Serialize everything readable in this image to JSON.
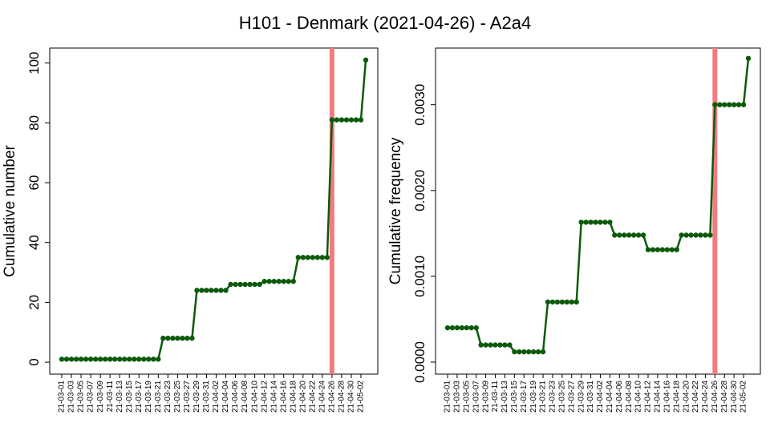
{
  "title": "H101 - Denmark (2021-04-26) - A2a4",
  "chart_data": [
    {
      "type": "line",
      "ylabel": "Cumulative number",
      "categories": [
        "21-03-01",
        null,
        "21-03-03",
        null,
        "21-03-05",
        null,
        "21-03-07",
        null,
        "21-03-09",
        null,
        "21-03-11",
        null,
        "21-03-13",
        null,
        "21-03-15",
        null,
        "21-03-17",
        null,
        "21-03-19",
        null,
        "21-03-21",
        null,
        "21-03-23",
        null,
        "21-03-25",
        null,
        "21-03-27",
        null,
        "21-03-29",
        null,
        "21-03-31",
        null,
        "21-04-02",
        null,
        "21-04-04",
        null,
        "21-04-06",
        null,
        "21-04-08",
        null,
        "21-04-10",
        null,
        "21-04-12",
        null,
        "21-04-14",
        null,
        "21-04-16",
        null,
        "21-04-18",
        null,
        "21-04-20",
        null,
        "21-04-22",
        null,
        "21-04-24",
        null,
        "21-04-26",
        null,
        "21-04-28",
        null,
        "21-04-30",
        null,
        "21-05-02",
        null
      ],
      "series": [
        {
          "name": "H101",
          "color": "#0b5a0b",
          "values": [
            1,
            1,
            1,
            1,
            1,
            1,
            1,
            1,
            1,
            1,
            1,
            1,
            1,
            1,
            1,
            1,
            1,
            1,
            1,
            1,
            1,
            8,
            8,
            8,
            8,
            8,
            8,
            8,
            24,
            24,
            24,
            24,
            24,
            24,
            24,
            26,
            26,
            26,
            26,
            26,
            26,
            26,
            27,
            27,
            27,
            27,
            27,
            27,
            27,
            35,
            35,
            35,
            35,
            35,
            35,
            35,
            81,
            81,
            81,
            81,
            81,
            81,
            81,
            101
          ]
        }
      ],
      "ylim": [
        -4,
        105
      ],
      "yticks": [
        0,
        20,
        40,
        60,
        80,
        100
      ],
      "vline": "21-04-26",
      "vline_color": "#f27b7f"
    },
    {
      "type": "line",
      "ylabel": "Cumulative frequency",
      "categories": [
        "21-03-01",
        null,
        "21-03-03",
        null,
        "21-03-05",
        null,
        "21-03-07",
        null,
        "21-03-09",
        null,
        "21-03-11",
        null,
        "21-03-13",
        null,
        "21-03-15",
        null,
        "21-03-17",
        null,
        "21-03-19",
        null,
        "21-03-21",
        null,
        "21-03-23",
        null,
        "21-03-25",
        null,
        "21-03-27",
        null,
        "21-03-29",
        null,
        "21-03-31",
        null,
        "21-04-02",
        null,
        "21-04-04",
        null,
        "21-04-06",
        null,
        "21-04-08",
        null,
        "21-04-10",
        null,
        "21-04-12",
        null,
        "21-04-14",
        null,
        "21-04-16",
        null,
        "21-04-18",
        null,
        "21-04-20",
        null,
        "21-04-22",
        null,
        "21-04-24",
        null,
        "21-04-26",
        null,
        "21-04-28",
        null,
        "21-04-30",
        null,
        "21-05-02",
        null
      ],
      "series": [
        {
          "name": "H101",
          "color": "#0b5a0b",
          "values": [
            0.0004,
            0.0004,
            0.0004,
            0.0004,
            0.0004,
            0.0004,
            0.0004,
            0.0002,
            0.0002,
            0.0002,
            0.0002,
            0.0002,
            0.0002,
            0.0002,
            0.00012,
            0.00012,
            0.00012,
            0.00012,
            0.00012,
            0.00012,
            0.00012,
            0.0007,
            0.0007,
            0.0007,
            0.0007,
            0.0007,
            0.0007,
            0.0007,
            0.00163,
            0.00163,
            0.00163,
            0.00163,
            0.00163,
            0.00163,
            0.00163,
            0.00148,
            0.00148,
            0.00148,
            0.00148,
            0.00148,
            0.00148,
            0.00148,
            0.00131,
            0.00131,
            0.00131,
            0.00131,
            0.00131,
            0.00131,
            0.00131,
            0.00148,
            0.00148,
            0.00148,
            0.00148,
            0.00148,
            0.00148,
            0.00148,
            0.003,
            0.003,
            0.003,
            0.003,
            0.003,
            0.003,
            0.003,
            0.00354
          ]
        }
      ],
      "ylim": [
        -0.00014,
        0.00366
      ],
      "yticks": [
        {
          "value": 0,
          "label": "0.0000"
        },
        {
          "value": 0.001,
          "label": "0.0010"
        },
        {
          "value": 0.002,
          "label": "0.0020"
        },
        {
          "value": 0.003,
          "label": "0.0030"
        }
      ],
      "vline": "21-04-26",
      "vline_color": "#f27b7f"
    }
  ]
}
